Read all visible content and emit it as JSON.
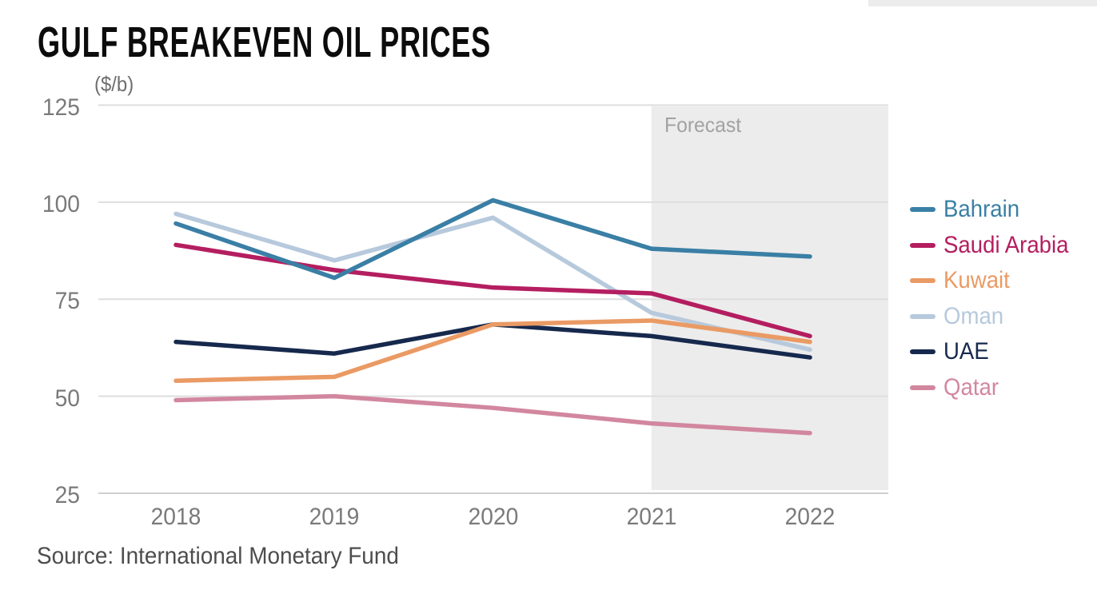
{
  "title": "GULF BREAKEVEN OIL PRICES",
  "source": "Source: International Monetary Fund",
  "chart_data": {
    "type": "line",
    "title": "GULF BREAKEVEN OIL PRICES",
    "unit_label": "($/b)",
    "categories": [
      "2018",
      "2019",
      "2020",
      "2021",
      "2022"
    ],
    "y_ticks": [
      125,
      100,
      75,
      50,
      25
    ],
    "ylim": [
      25,
      125
    ],
    "grid": "horizontal-only",
    "legend_position": "right",
    "forecast": {
      "label": "Forecast",
      "from_category": "2021",
      "fill": "#ececec",
      "label_color": "#a2a2a2"
    },
    "series": [
      {
        "name": "Bahrain",
        "color": "#3a7fa5",
        "values": [
          94.5,
          80.5,
          100.5,
          88,
          86
        ]
      },
      {
        "name": "Saudi Arabia",
        "color": "#b41e60",
        "values": [
          89,
          82.5,
          78,
          76.5,
          65.5
        ]
      },
      {
        "name": "Kuwait",
        "color": "#ea9a64",
        "values": [
          54,
          55,
          68.5,
          69.5,
          64
        ]
      },
      {
        "name": "Oman",
        "color": "#b7c9dc",
        "values": [
          97,
          85,
          96,
          71.5,
          62
        ]
      },
      {
        "name": "UAE",
        "color": "#16294d",
        "values": [
          64,
          61,
          68.5,
          65.5,
          60
        ]
      },
      {
        "name": "Qatar",
        "color": "#d2879f",
        "values": [
          49,
          50,
          47,
          43,
          40.5
        ]
      }
    ]
  },
  "colors": {
    "grid": "#dedede",
    "bottom_grid": "#cfcfcf",
    "axis_text": "#7a7a7a",
    "title_text": "#0c0c0c",
    "source_text": "#4d4d4d"
  }
}
